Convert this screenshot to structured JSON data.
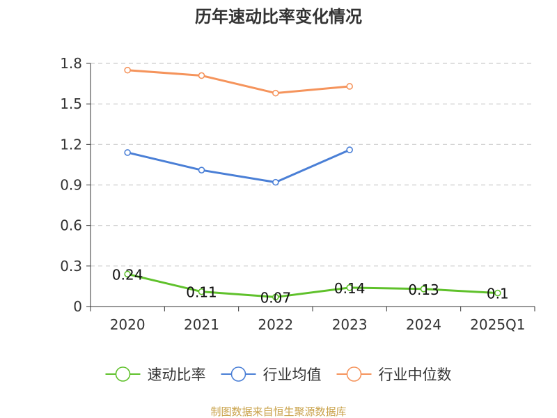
{
  "chart_data": {
    "type": "line",
    "title": "历年速动比率变化情况",
    "categories": [
      "2020",
      "2021",
      "2022",
      "2023",
      "2024",
      "2025Q1"
    ],
    "ylim": [
      0,
      1.8
    ],
    "yticks": [
      "0",
      "0.3",
      "0.6",
      "0.9",
      "1.2",
      "1.5",
      "1.8"
    ],
    "grid": true,
    "legend_position": "bottom",
    "series": [
      {
        "name": "速动比率",
        "color": "#5fc12b",
        "values": [
          0.24,
          0.11,
          0.07,
          0.14,
          0.13,
          0.1
        ],
        "labels": [
          "0.24",
          "0.11",
          "0.07",
          "0.14",
          "0.13",
          "0.1"
        ]
      },
      {
        "name": "行业均值",
        "color": "#4a7fd6",
        "values": [
          1.14,
          1.01,
          0.92,
          1.16,
          null,
          null
        ]
      },
      {
        "name": "行业中位数",
        "color": "#f5945c",
        "values": [
          1.75,
          1.71,
          1.58,
          1.63,
          null,
          null
        ]
      }
    ]
  },
  "footer": {
    "source": "制图数据来自恒生聚源数据库"
  }
}
